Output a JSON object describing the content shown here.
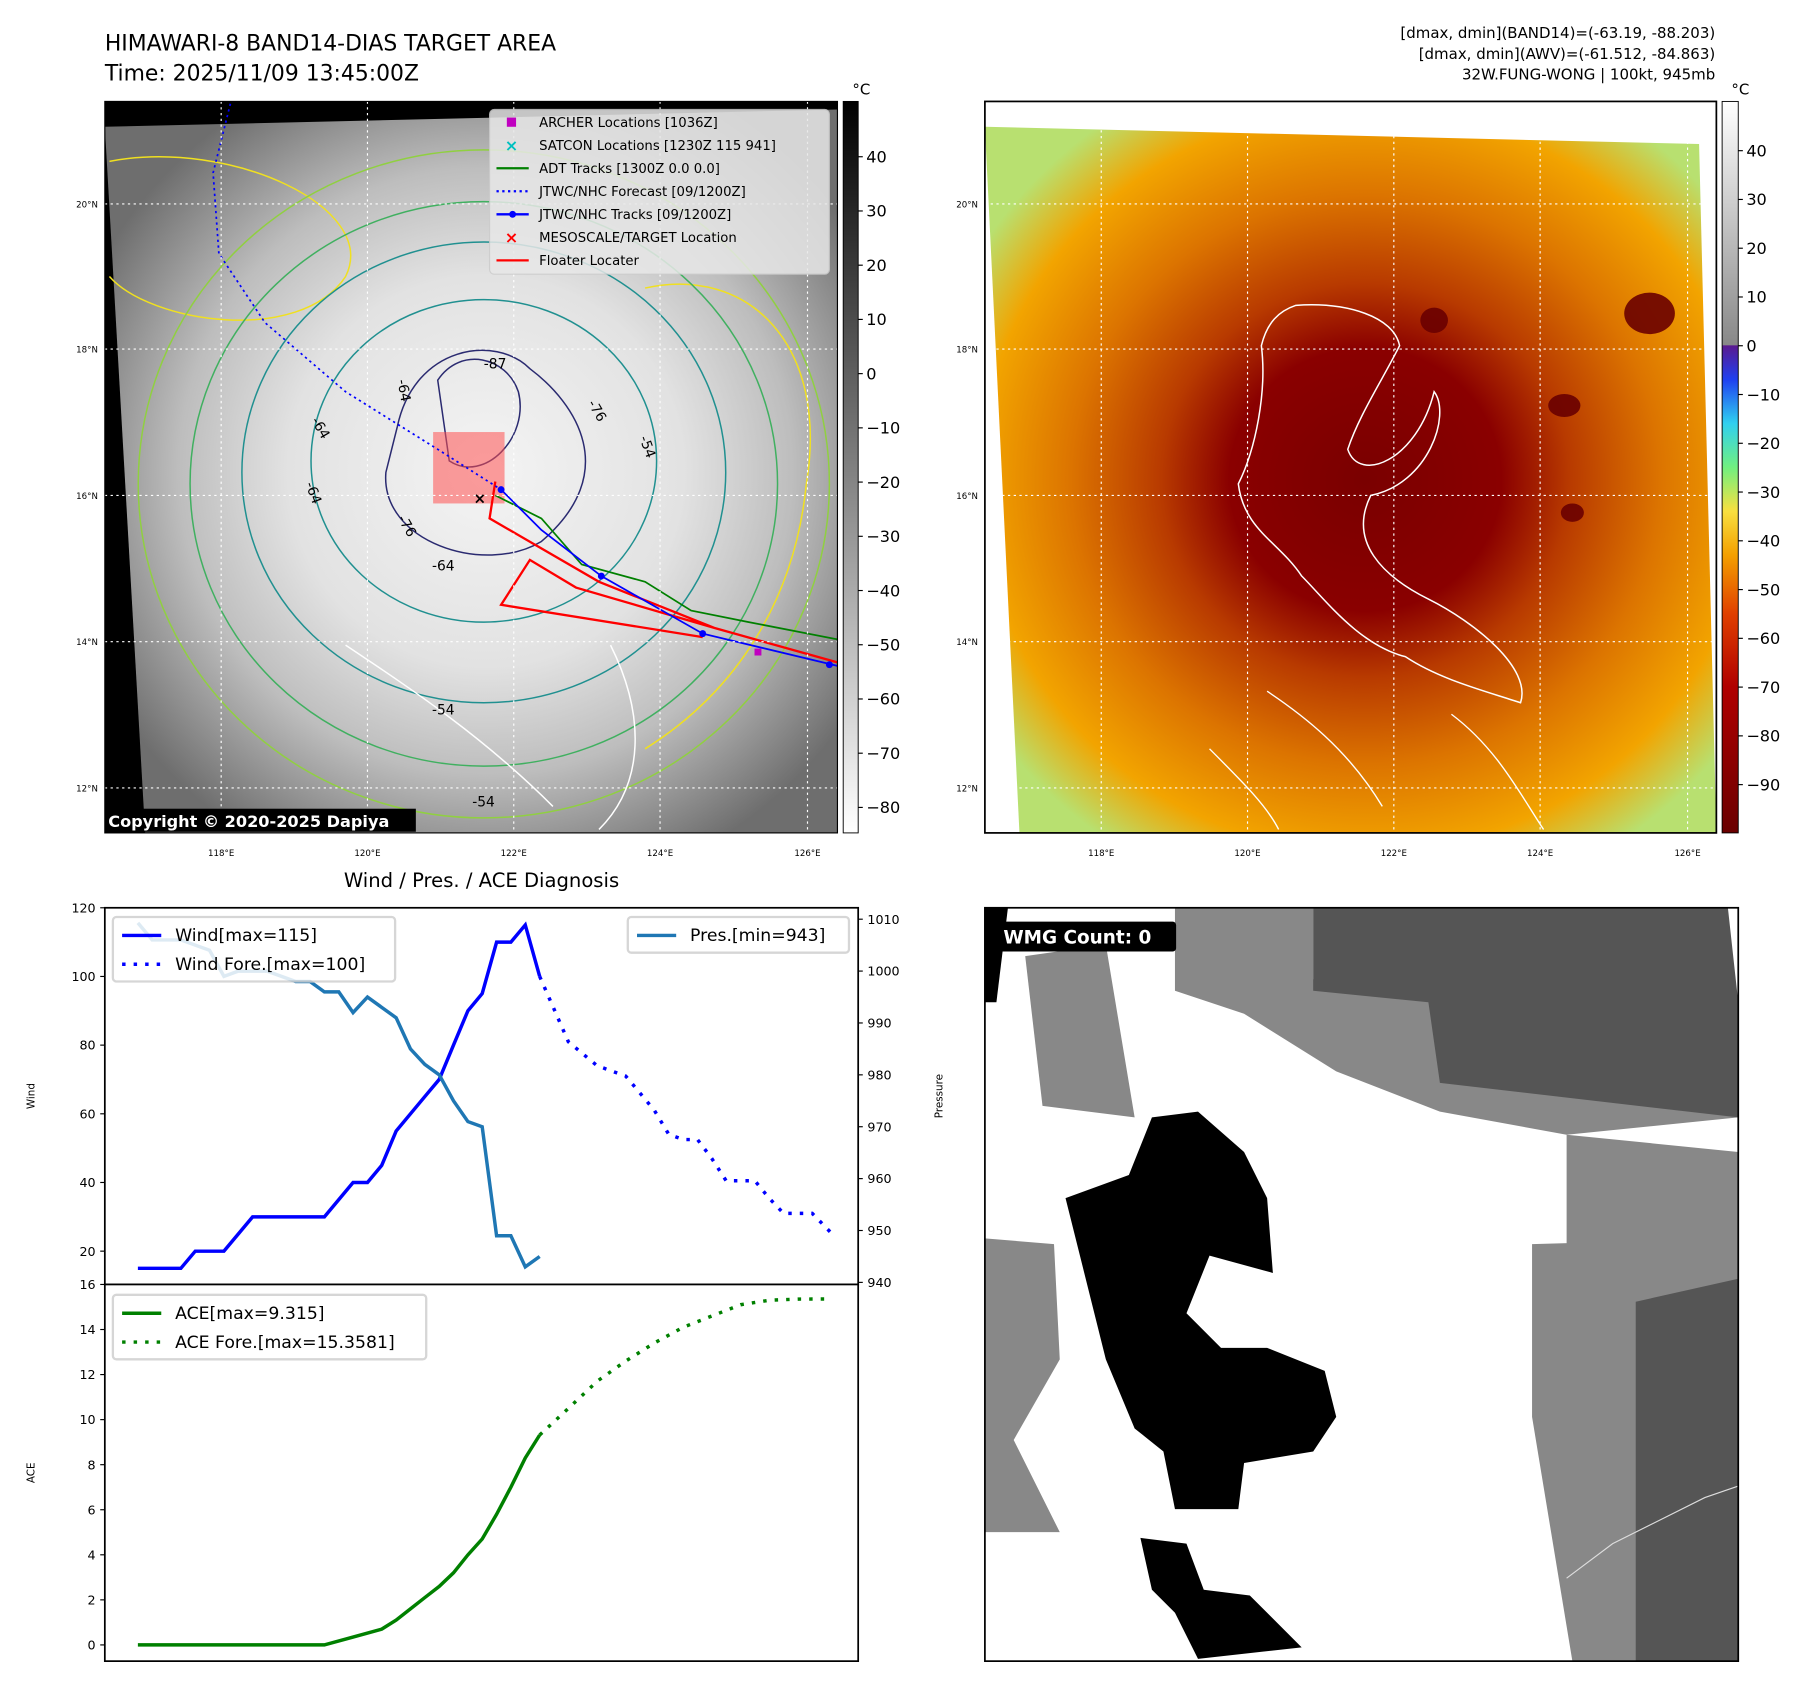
{
  "header": {
    "title_line1": "HIMAWARI-8 BAND14-DIAS TARGET AREA",
    "title_line2": "Time: 2025/11/09 13:45:00Z",
    "info_line1": "[dmax, dmin](BAND14)=(-63.19, -88.203)",
    "info_line2": "[dmax, dmin](AWV)=(-61.512, -84.863)",
    "info_line3": "32W.FUNG-WONG | 100kt, 945mb"
  },
  "maps": {
    "lat_ticks": [
      "20°N",
      "18°N",
      "16°N",
      "14°N",
      "12°N"
    ],
    "lon_ticks": [
      "118°E",
      "120°E",
      "122°E",
      "124°E",
      "126°E"
    ],
    "copyright": "Copyright © 2020-2025 Dapiya",
    "legend": [
      {
        "label": "ARCHER Locations [1036Z]",
        "color": "#c000c0",
        "marker": "square"
      },
      {
        "label": "SATCON Locations [1230Z 115 941]",
        "color": "#00c0c0",
        "marker": "x"
      },
      {
        "label": "ADT Tracks [1300Z 0.0 0.0]",
        "color": "#008000",
        "marker": "line"
      },
      {
        "label": "JTWC/NHC Forecast [09/1200Z]",
        "color": "#0000ff",
        "marker": "dotted"
      },
      {
        "label": "JTWC/NHC Tracks [09/1200Z]",
        "color": "#0000ff",
        "marker": "line-dot"
      },
      {
        "label": "MESOSCALE/TARGET Location",
        "color": "#ff0000",
        "marker": "x"
      },
      {
        "label": "Floater Locater",
        "color": "#ff0000",
        "marker": "line"
      }
    ],
    "contour_labels": [
      "-64",
      "-64",
      "-76",
      "-76",
      "-64",
      "-54",
      "-54",
      "-54",
      "-64",
      "-87"
    ],
    "colorbar1": {
      "unit": "°C",
      "ticks": [
        "40",
        "30",
        "20",
        "10",
        "0",
        "−10",
        "−20",
        "−30",
        "−40",
        "−50",
        "−60",
        "−70",
        "−80"
      ]
    },
    "colorbar2": {
      "unit": "°C",
      "ticks": [
        "40",
        "30",
        "20",
        "10",
        "0",
        "−10",
        "−20",
        "−30",
        "−40",
        "−50",
        "−60",
        "−70",
        "−80",
        "−90"
      ]
    },
    "wmg_label": "WMG Count: 0"
  },
  "chart_data": [
    {
      "type": "line",
      "title": "Wind / Pres. / ACE Diagnosis",
      "ylabel": "Wind",
      "ylabel_right": "Pressure",
      "ylim": [
        10.3,
        120
      ],
      "ylim_right": [
        939.6,
        1012.2
      ],
      "xlim": [
        -2.3,
        50.2
      ],
      "yticks": [
        "120",
        "100",
        "80",
        "60",
        "40",
        "20"
      ],
      "yticks_right": [
        "1010",
        "1000",
        "990",
        "980",
        "970",
        "960",
        "950",
        "940"
      ],
      "series": [
        {
          "name": "Wind[max=115]",
          "color": "#0000ff",
          "style": "solid",
          "axis": "left",
          "x": [
            0,
            3,
            4,
            6,
            8,
            13,
            15,
            16,
            17,
            18,
            20,
            21,
            22,
            23,
            24,
            25,
            26,
            27,
            28
          ],
          "y": [
            15,
            15,
            20,
            20,
            30,
            30,
            40,
            40,
            45,
            55,
            65,
            70,
            80,
            90,
            95,
            110,
            110,
            115,
            100
          ]
        },
        {
          "name": "Wind Fore.[max=100]",
          "color": "#0000ff",
          "style": "dotted",
          "axis": "left",
          "x": [
            28,
            30,
            32,
            34,
            35,
            36,
            37,
            38,
            39,
            40,
            41,
            43,
            44,
            45,
            47,
            48.3
          ],
          "y": [
            100,
            81,
            74,
            71,
            66,
            61,
            54,
            52.5,
            52.5,
            47,
            40.5,
            40.5,
            35.4,
            31,
            31,
            25.4
          ]
        },
        {
          "name": "Pres.[min=943]",
          "color": "#1f77b4",
          "style": "solid",
          "axis": "right",
          "x": [
            0,
            1,
            3,
            5,
            6,
            7,
            9,
            11,
            12,
            13,
            14,
            15,
            16,
            18,
            19,
            20,
            21,
            22,
            23,
            24,
            25,
            26,
            27,
            28
          ],
          "y": [
            1009.3,
            1006,
            1006,
            1004,
            999,
            1000,
            1000,
            998,
            998,
            996,
            996,
            992,
            995,
            991,
            985,
            982,
            980,
            975,
            971,
            970,
            949,
            949,
            943,
            945
          ]
        }
      ]
    },
    {
      "type": "line",
      "ylabel": "ACE",
      "ylim": [
        -0.72,
        16
      ],
      "xlim": [
        -2.3,
        50.2
      ],
      "yticks": [
        "16",
        "14",
        "12",
        "10",
        "8",
        "6",
        "4",
        "2",
        "0"
      ],
      "series": [
        {
          "name": "ACE[max=9.315]",
          "color": "#008000",
          "style": "solid",
          "x": [
            0,
            13,
            15,
            17,
            18,
            19,
            20,
            21,
            22,
            23,
            24,
            25,
            26,
            27,
            28
          ],
          "y": [
            0,
            0,
            0.35,
            0.7,
            1.1,
            1.6,
            2.1,
            2.6,
            3.2,
            4,
            4.7,
            5.8,
            7,
            8.3,
            9.315
          ]
        },
        {
          "name": "ACE Fore.[max=15.3581]",
          "color": "#008000",
          "style": "dotted",
          "x": [
            28,
            30,
            32,
            34,
            36,
            38,
            40,
            42,
            44,
            46,
            48
          ],
          "y": [
            9.315,
            10.5,
            11.7,
            12.6,
            13.4,
            14.1,
            14.6,
            15.1,
            15.3,
            15.35,
            15.3581
          ]
        }
      ]
    }
  ]
}
